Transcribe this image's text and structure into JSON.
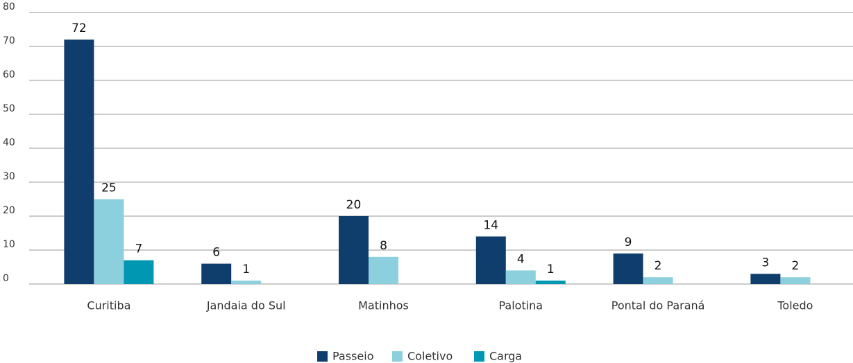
{
  "chart_data": {
    "type": "bar",
    "categories": [
      "Curitiba",
      "Jandaia do Sul",
      "Matinhos",
      "Palotina",
      "Pontal do Paraná",
      "Toledo"
    ],
    "series": [
      {
        "name": "Passeio",
        "color": "#0f3e6c",
        "values": [
          72,
          6,
          20,
          14,
          9,
          3
        ]
      },
      {
        "name": "Coletivo",
        "color": "#8dd0dd",
        "values": [
          25,
          1,
          8,
          4,
          2,
          2
        ]
      },
      {
        "name": "Carga",
        "color": "#0097b2",
        "values": [
          7,
          null,
          null,
          1,
          null,
          null
        ]
      }
    ],
    "ylim": [
      0,
      80
    ],
    "yticks": [
      0,
      10,
      20,
      30,
      40,
      50,
      60,
      70,
      80
    ],
    "grid": true,
    "legend": "bottom"
  }
}
